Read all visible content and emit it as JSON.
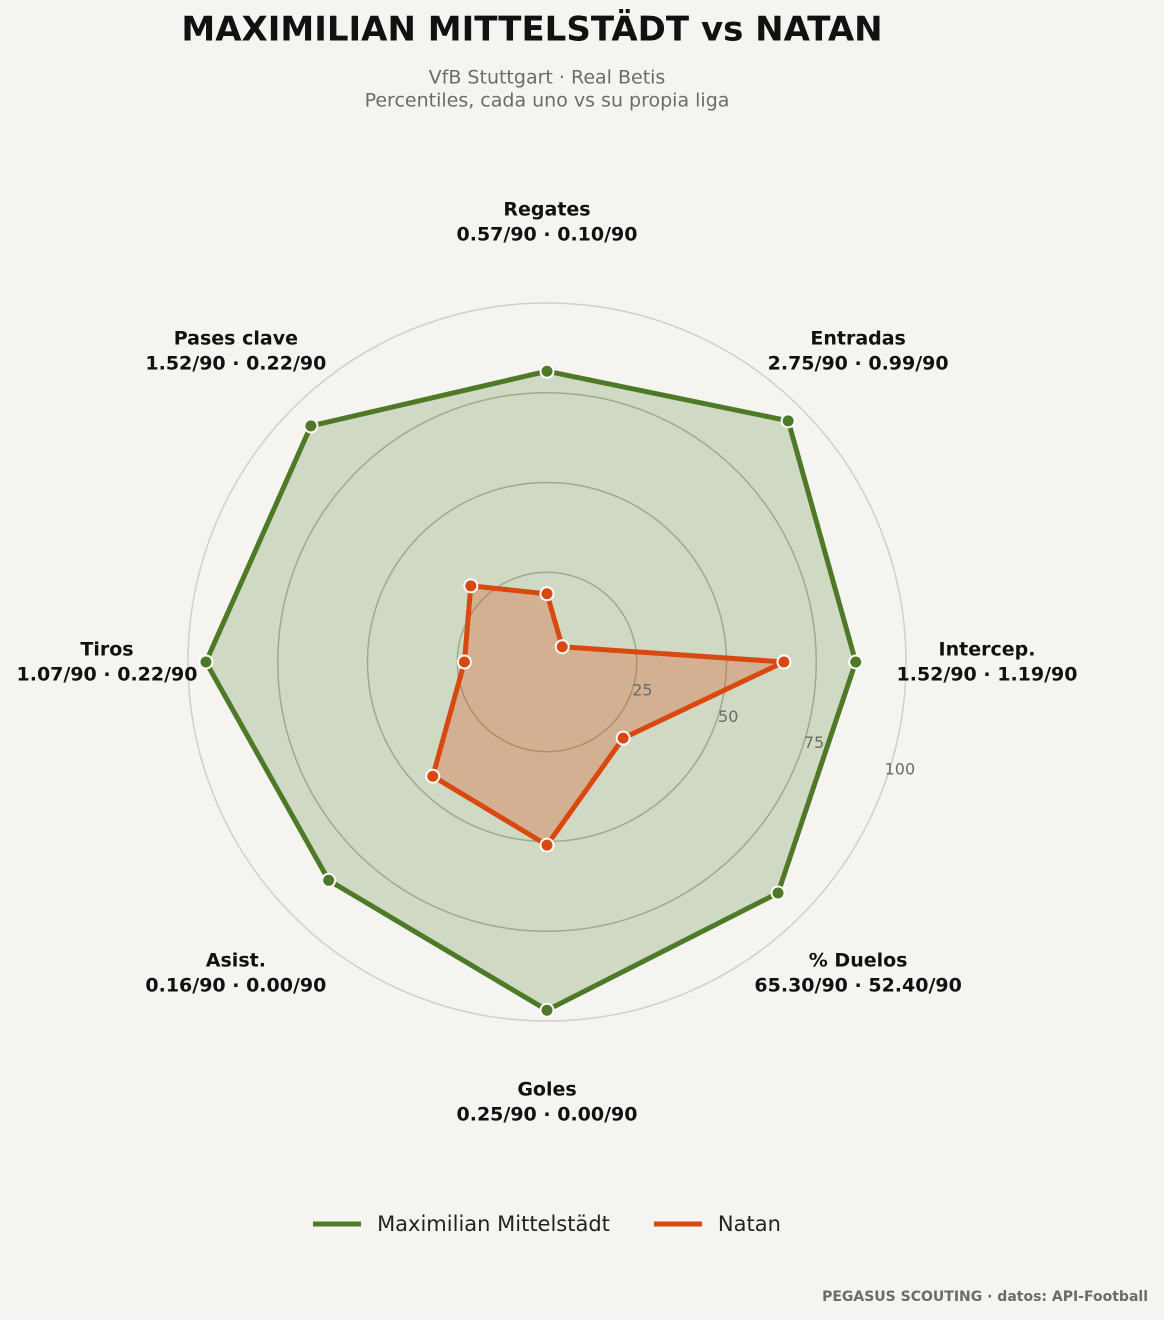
{
  "chart_data": {
    "type": "radar",
    "title": "MAXIMILIAN MITTELSTÄDT  vs  NATAN",
    "subtitle": [
      "VfB Stuttgart · Real Betis",
      "Percentiles, cada uno vs su propia liga"
    ],
    "categories": [
      "Regates",
      "Entradas",
      "Intercep.",
      "% Duelos",
      "Goles",
      "Asist.",
      "Tiros",
      "Pases clave"
    ],
    "category_stats": [
      "0.57/90 · 0.10/90",
      "2.75/90 · 0.99/90",
      "1.52/90 · 1.19/90",
      "65.30/90 · 52.40/90",
      "0.25/90 · 0.00/90",
      "0.16/90 · 0.00/90",
      "1.07/90 · 0.22/90",
      "1.52/90 · 0.22/90"
    ],
    "series": [
      {
        "name": "Maximilian Mittelstädt",
        "color": "#4e7a27",
        "values": [
          81,
          95,
          86,
          91,
          97,
          86,
          95,
          93
        ]
      },
      {
        "name": "Natan",
        "color": "#d9480f",
        "values": [
          19,
          6,
          66,
          30,
          51,
          45,
          23,
          30
        ]
      }
    ],
    "ylim": [
      0,
      100
    ],
    "yticks": [
      25,
      50,
      75,
      100
    ],
    "grid": true,
    "legend": "bottom",
    "footer": "PEGASUS SCOUTING · datos: API-Football"
  }
}
